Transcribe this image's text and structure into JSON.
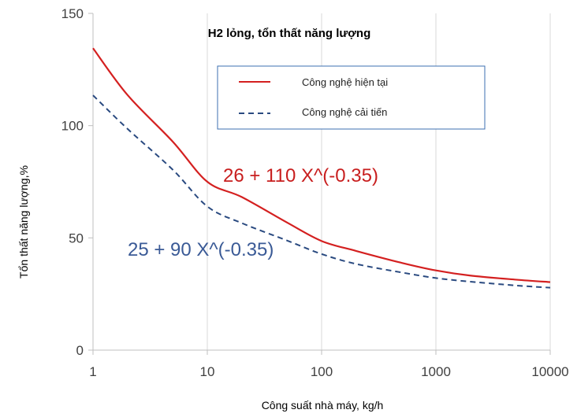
{
  "chart_data": {
    "type": "line",
    "title": "H2 lỏng, tổn thất năng lượng",
    "xlabel": "Công suất nhà máy, kg/h",
    "ylabel": "Tổn thất năng lượng,%",
    "xscale": "log",
    "xlim": [
      1,
      10000
    ],
    "ylim": [
      0,
      150
    ],
    "x_ticks": [
      "1",
      "10",
      "100",
      "1000",
      "10000"
    ],
    "y_ticks": [
      "0",
      "50",
      "100",
      "150"
    ],
    "grid": "vertical",
    "legend_position": "top-right",
    "series": [
      {
        "name": "Công nghệ hiện tại",
        "style": "solid",
        "color": "#d42020",
        "x": [
          1,
          2,
          5,
          10,
          20,
          50,
          100,
          200,
          500,
          1000,
          2000,
          5000,
          10000
        ],
        "y": [
          134.5,
          113.7,
          92.8,
          75,
          68.2,
          56.8,
          48.6,
          44.2,
          38.9,
          35.5,
          33.2,
          31.4,
          30.3
        ]
      },
      {
        "name": "Công nghệ cải tiến",
        "style": "dashed",
        "color": "#2a4a80",
        "x": [
          1,
          2,
          5,
          10,
          20,
          50,
          100,
          200,
          500,
          1000,
          2000,
          5000,
          10000
        ],
        "y": [
          113.5,
          98.6,
          80.3,
          64,
          56.6,
          48.8,
          42.8,
          38.4,
          34.6,
          32.1,
          30.5,
          28.8,
          27.8
        ]
      }
    ],
    "annotations": [
      {
        "text": "26 + 110 X^(-0.35)",
        "color": "#c81e1e"
      },
      {
        "text": "25 + 90 X^(-0.35)",
        "color": "#3a5a96"
      }
    ]
  }
}
